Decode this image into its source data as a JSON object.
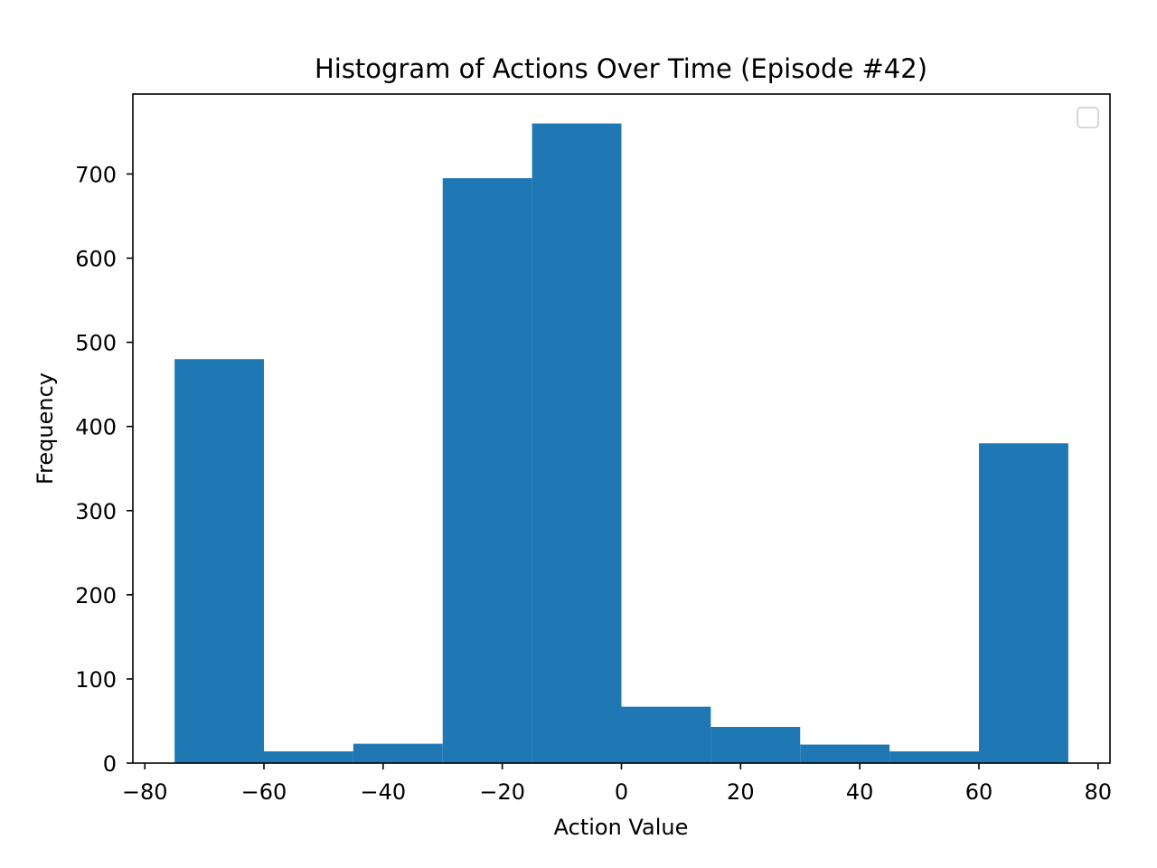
{
  "chart_data": {
    "type": "bar",
    "title": "Histogram of Actions Over Time (Episode #42)",
    "xlabel": "Action Value",
    "ylabel": "Frequency",
    "xlim": [
      -82,
      82
    ],
    "ylim": [
      0,
      795
    ],
    "x_ticks": [
      -80,
      -60,
      -40,
      -20,
      0,
      20,
      40,
      60,
      80
    ],
    "x_tick_labels": [
      "−80",
      "−60",
      "−40",
      "−20",
      "0",
      "20",
      "40",
      "60",
      "80"
    ],
    "y_ticks": [
      0,
      100,
      200,
      300,
      400,
      500,
      600,
      700
    ],
    "y_tick_labels": [
      "0",
      "100",
      "200",
      "300",
      "400",
      "500",
      "600",
      "700"
    ],
    "bin_edges": [
      -75,
      -60,
      -45,
      -30,
      -15,
      0,
      15,
      30,
      45,
      60,
      75
    ],
    "values": [
      480,
      14,
      23,
      695,
      760,
      67,
      43,
      22,
      14,
      380
    ],
    "bar_color": "#1f77b4",
    "grid": false,
    "legend": {
      "placement": "upper-right",
      "entries": []
    }
  }
}
